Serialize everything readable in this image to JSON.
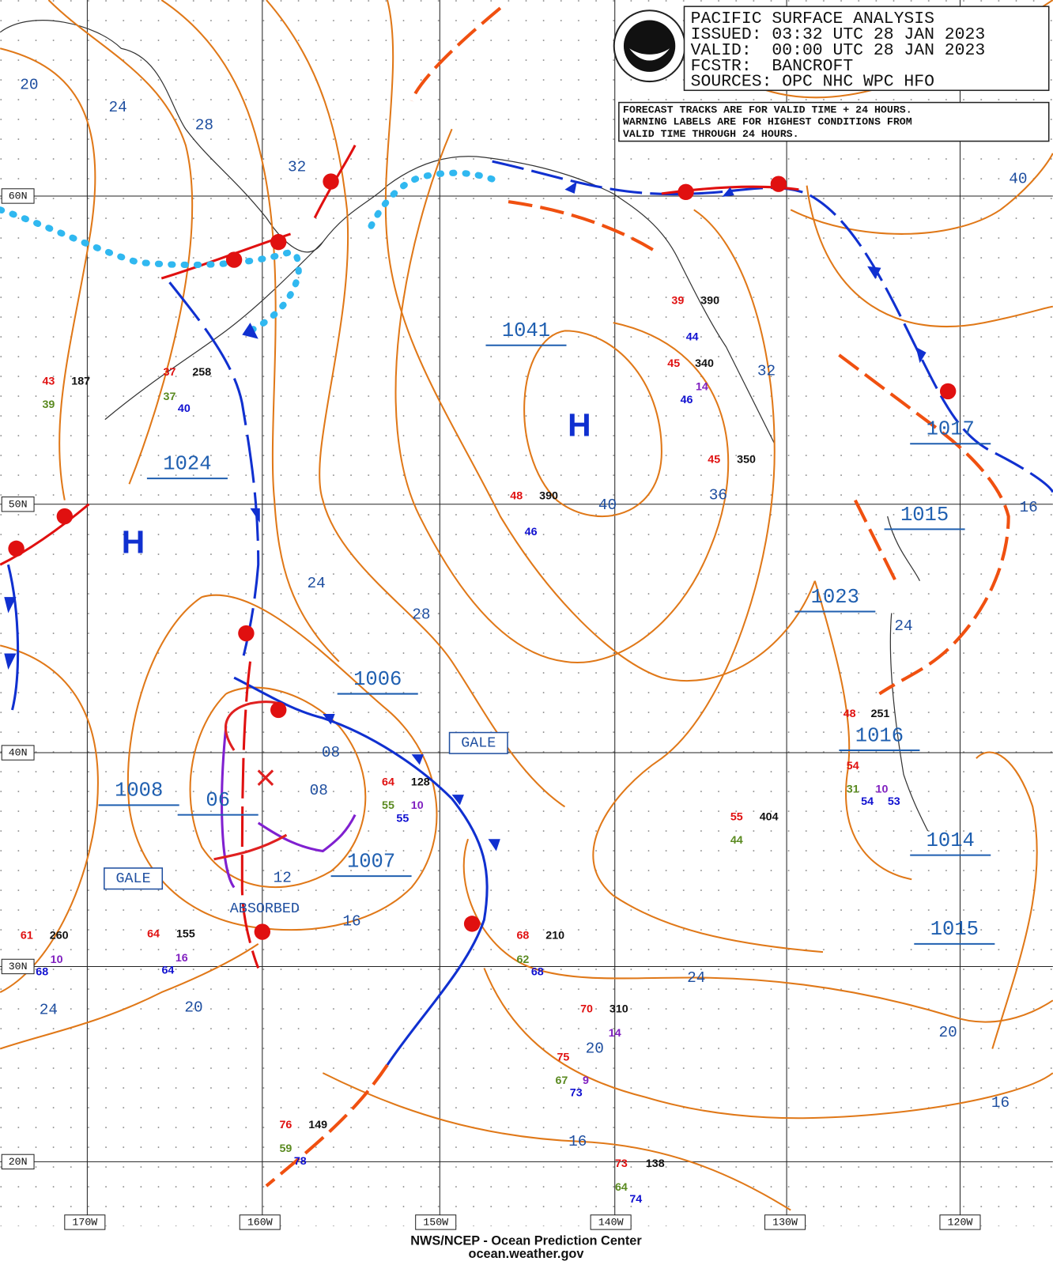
{
  "header": {
    "title": "PACIFIC SURFACE ANALYSIS",
    "issued": "ISSUED: 03:32 UTC 28 JAN 2023",
    "valid": "VALID:  00:00 UTC 28 JAN 2023",
    "forecaster": "FCSTR:  BANCROFT",
    "sources": "SOURCES: OPC NHC WPC HFO"
  },
  "note": [
    "FORECAST TRACKS ARE FOR VALID TIME + 24 HOURS.",
    "WARNING LABELS ARE FOR HIGHEST CONDITIONS FROM",
    "VALID TIME THROUGH 24 HOURS."
  ],
  "latitude_labels": [
    "60N",
    "50N",
    "40N",
    "30N",
    "20N"
  ],
  "longitude_labels": [
    "170W",
    "160W",
    "150W",
    "140W",
    "130W",
    "120W"
  ],
  "pressure_centers": [
    "1041",
    "1024",
    "1006",
    "1008",
    "06",
    "1007",
    "1017",
    "1015",
    "1023",
    "1016",
    "1014",
    "1015"
  ],
  "high_symbols": [
    "H",
    "H"
  ],
  "isobar_labels": [
    "20",
    "24",
    "28",
    "32",
    "24",
    "28",
    "40",
    "32",
    "36",
    "40",
    "24",
    "08",
    "08",
    "12",
    "16",
    "24",
    "20",
    "20",
    "16",
    "16",
    "16",
    "20",
    "24"
  ],
  "warnings": [
    "GALE",
    "GALE"
  ],
  "annotations": [
    "ABSORBED"
  ],
  "station_labels": [
    "43",
    "187",
    "39",
    "37",
    "258",
    "37",
    "40",
    "48",
    "390",
    "46",
    "45",
    "340",
    "46",
    "14",
    "45",
    "350",
    "39",
    "390",
    "44",
    "64",
    "128",
    "55",
    "10",
    "55",
    "61",
    "260",
    "10",
    "68",
    "64",
    "155",
    "16",
    "64",
    "68",
    "210",
    "62",
    "68",
    "70",
    "310",
    "14",
    "75",
    "67",
    "9",
    "73",
    "73",
    "138",
    "64",
    "74",
    "76",
    "149",
    "59",
    "78",
    "55",
    "404",
    "44",
    "54",
    "31",
    "54",
    "10",
    "53",
    "48",
    "251"
  ],
  "footer": [
    "NWS/NCEP - Ocean Prediction Center",
    "ocean.weather.gov"
  ]
}
